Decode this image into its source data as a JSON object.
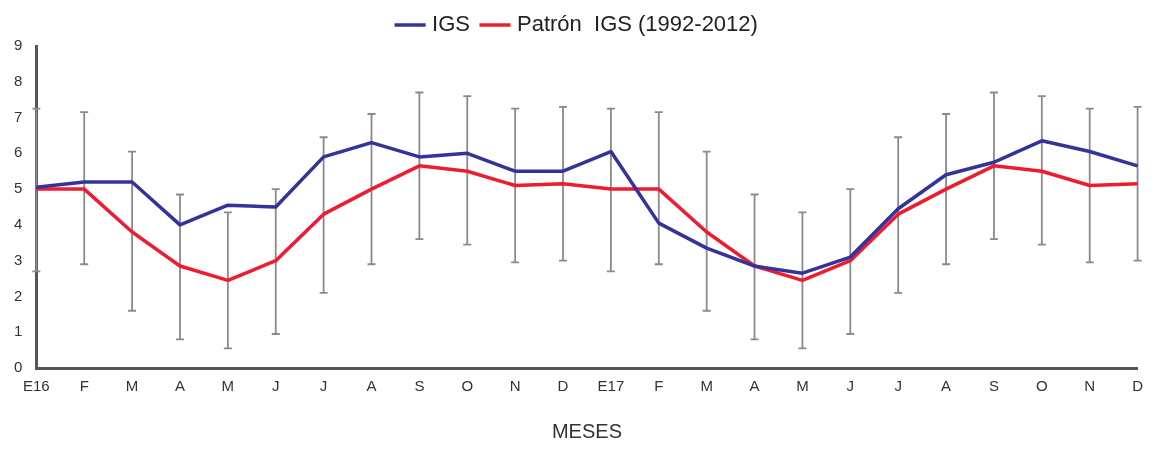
{
  "chart_data": {
    "type": "line",
    "xlabel": "MESES",
    "categories": [
      "E16",
      "F",
      "M",
      "A",
      "M",
      "J",
      "J",
      "A",
      "S",
      "O",
      "N",
      "D",
      "E17",
      "F",
      "M",
      "A",
      "M",
      "J",
      "J",
      "A",
      "S",
      "O",
      "N",
      "D"
    ],
    "ylim": [
      0,
      9
    ],
    "yticks": [
      0,
      1,
      2,
      3,
      4,
      5,
      6,
      7,
      8,
      9
    ],
    "grid": false,
    "legend": "top",
    "marker": "none",
    "series": [
      {
        "name": "IGS",
        "color": "#33339a",
        "values": [
          5.05,
          5.2,
          5.2,
          4.0,
          4.55,
          4.5,
          5.9,
          6.3,
          5.9,
          6.0,
          5.5,
          5.5,
          6.05,
          4.05,
          3.35,
          2.85,
          2.65,
          3.1,
          4.45,
          5.4,
          5.75,
          6.35,
          6.05,
          5.65
        ]
      },
      {
        "name": "Patrón  IGS (1992-2012)",
        "color": "#ee1c2e",
        "values": [
          5.0,
          5.0,
          3.8,
          2.85,
          2.45,
          3.0,
          4.3,
          5.0,
          5.65,
          5.5,
          5.1,
          5.15,
          5.0,
          5.0,
          3.8,
          2.85,
          2.45,
          3.0,
          4.3,
          5.0,
          5.65,
          5.5,
          5.1,
          5.15
        ],
        "errors": [
          [
            2.7,
            7.25
          ],
          [
            2.9,
            7.15
          ],
          [
            1.6,
            6.05
          ],
          [
            0.8,
            4.85
          ],
          [
            0.55,
            4.35
          ],
          [
            0.95,
            5.0
          ],
          [
            2.1,
            6.45
          ],
          [
            2.9,
            7.1
          ],
          [
            3.6,
            7.7
          ],
          [
            3.45,
            7.6
          ],
          [
            2.95,
            7.25
          ],
          [
            3.0,
            7.3
          ],
          [
            2.7,
            7.25
          ],
          [
            2.9,
            7.15
          ],
          [
            1.6,
            6.05
          ],
          [
            0.8,
            4.85
          ],
          [
            0.55,
            4.35
          ],
          [
            0.95,
            5.0
          ],
          [
            2.1,
            6.45
          ],
          [
            2.9,
            7.1
          ],
          [
            3.6,
            7.7
          ],
          [
            3.45,
            7.6
          ],
          [
            2.95,
            7.25
          ],
          [
            3.0,
            7.3
          ]
        ]
      }
    ]
  }
}
